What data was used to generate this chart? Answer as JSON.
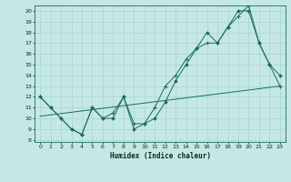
{
  "xlabel": "Humidex (Indice chaleur)",
  "bg_color": "#c5e8e5",
  "line_color": "#1a6b5a",
  "grid_color": "#a8d5d0",
  "xlim": [
    -0.5,
    23.5
  ],
  "ylim": [
    7.8,
    20.5
  ],
  "xticks": [
    0,
    1,
    2,
    3,
    4,
    5,
    6,
    7,
    8,
    9,
    10,
    11,
    12,
    13,
    14,
    15,
    16,
    17,
    18,
    19,
    20,
    21,
    22,
    23
  ],
  "yticks": [
    8,
    9,
    10,
    11,
    12,
    13,
    14,
    15,
    16,
    17,
    18,
    19,
    20
  ],
  "line1_x": [
    0,
    1,
    2,
    3,
    4,
    5,
    6,
    7,
    8,
    9,
    10,
    11,
    12,
    13,
    14,
    15,
    16,
    17,
    18,
    19,
    20,
    21,
    22,
    23
  ],
  "line1_y": [
    12,
    11,
    10,
    9,
    8.5,
    11,
    10,
    10.5,
    12,
    9.5,
    9.5,
    11,
    13,
    14,
    15.5,
    16.5,
    17,
    17,
    18.5,
    19.5,
    20.5,
    17,
    15,
    13
  ],
  "line2_x": [
    0,
    1,
    2,
    3,
    4,
    5,
    6,
    7,
    8,
    9,
    10,
    11,
    12,
    13,
    14,
    15,
    16,
    17,
    18,
    19,
    20,
    21,
    22,
    23
  ],
  "line2_y": [
    12,
    11,
    10,
    9,
    8.5,
    11,
    10,
    10,
    12,
    9,
    9.5,
    10,
    11.5,
    13.5,
    15,
    16.5,
    18,
    17,
    18.5,
    20,
    20,
    17,
    15,
    14
  ],
  "line3_x": [
    0,
    23
  ],
  "line3_y": [
    10.2,
    13.0
  ]
}
